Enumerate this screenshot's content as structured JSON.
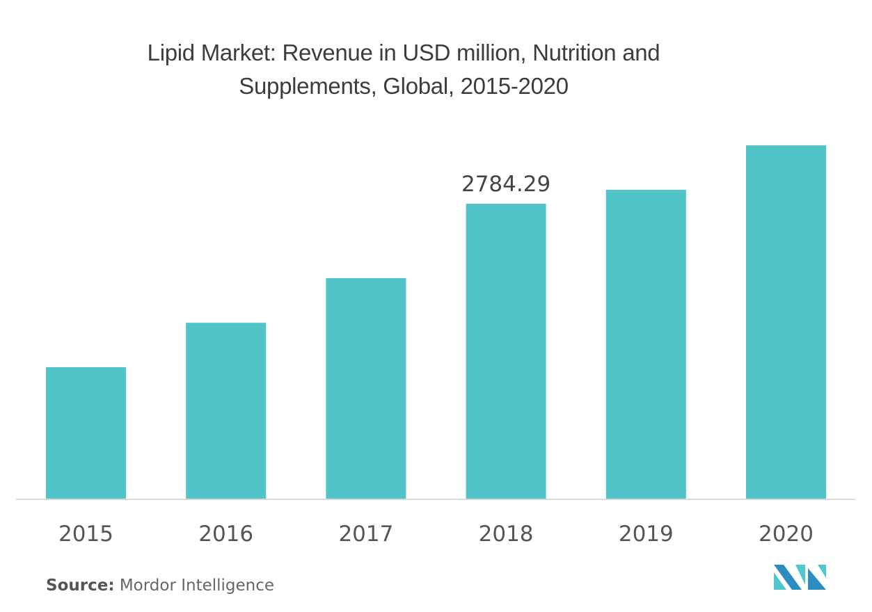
{
  "chart_data": {
    "type": "bar",
    "title": "Lipid Market: Revenue in USD million, Nutrition and Supplements, Global, 2015-2020",
    "title_lines": [
      "Lipid Market: Revenue in USD million, Nutrition and",
      "Supplements, Global, 2015-2020"
    ],
    "categories": [
      "2015",
      "2016",
      "2017",
      "2018",
      "2019",
      "2020"
    ],
    "values": [
      1241,
      1661,
      2082,
      2784.29,
      2916,
      3336
    ],
    "data_labels": [
      null,
      null,
      null,
      "2784.29",
      null,
      null
    ],
    "xlabel": "",
    "ylabel": "",
    "ylim": [
      0,
      3400
    ],
    "grid": false,
    "legend": "none",
    "bar_color": "#51c4ca",
    "baseline_color": "#d9d9d9"
  },
  "footer": {
    "source_label": "Source:",
    "source_value": "Mordor Intelligence"
  },
  "logo": {
    "name": "Mordor Intelligence logo",
    "colors": {
      "dark": "#2a8ec0",
      "light": "#4fc8cd"
    }
  }
}
